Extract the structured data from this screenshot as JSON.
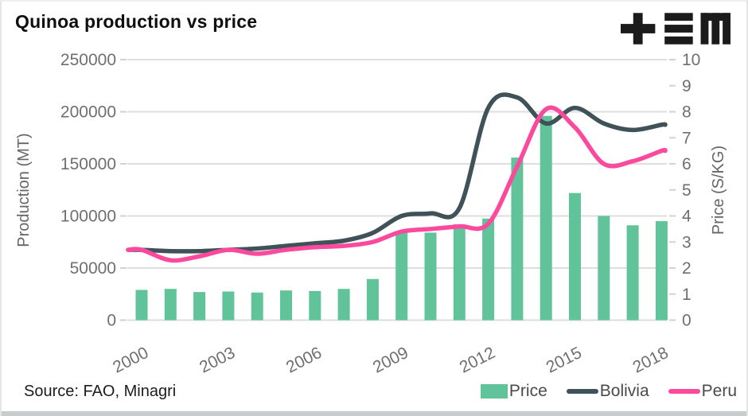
{
  "header": {
    "title": "Quinoa production vs price",
    "logo_icon": "tem-logo"
  },
  "source": {
    "text": "Source: FAO, Minagri"
  },
  "colors": {
    "bar_green": "#61c399",
    "bolivia_slate": "#3f5257",
    "peru_pink": "#fb4a9d",
    "grid": "#dedede",
    "tick": "#d2d2d2",
    "axis_text": "#6f6f6f",
    "legend_text": "#4a4a4a",
    "logo_black": "#1b1b1b",
    "bottom_band": "#c9cccd"
  },
  "chart_data": {
    "type": "bar",
    "title": "Quinoa production vs price",
    "x": [
      2000,
      2001,
      2002,
      2003,
      2004,
      2005,
      2006,
      2007,
      2008,
      2009,
      2010,
      2011,
      2012,
      2013,
      2014,
      2015,
      2016,
      2017,
      2018
    ],
    "x_axis": {
      "tick_labels": [
        "2000",
        "2003",
        "2006",
        "2009",
        "2012",
        "2015",
        "2018"
      ],
      "tick_years": [
        2000,
        2003,
        2006,
        2009,
        2012,
        2015,
        2018
      ]
    },
    "left_axis": {
      "label": "Production (MT)",
      "range": [
        0,
        250000
      ],
      "ticks": [
        0,
        50000,
        100000,
        150000,
        200000,
        250000
      ],
      "tick_labels": [
        "0",
        "50000",
        "100000",
        "150000",
        "200000",
        "250000"
      ]
    },
    "right_axis": {
      "label": "Price (S/KG)",
      "range": [
        0,
        10
      ],
      "ticks": [
        0,
        1,
        2,
        3,
        4,
        5,
        6,
        7,
        8,
        9,
        10
      ],
      "tick_labels": [
        "0",
        "1",
        "2",
        "3",
        "4",
        "5",
        "6",
        "7",
        "8",
        "9",
        "10"
      ]
    },
    "grid": "horizontal-only",
    "legend_position": "bottom-right",
    "series": [
      {
        "name": "Price",
        "type": "bar",
        "axis": "left",
        "color": "#61c399",
        "values": [
          29000,
          30000,
          27000,
          27500,
          26500,
          28500,
          28000,
          30000,
          39500,
          84000,
          84000,
          92000,
          97500,
          156000,
          196000,
          122000,
          100000,
          91000,
          95000
        ]
      },
      {
        "name": "Bolivia",
        "type": "line",
        "axis": "right",
        "color": "#3f5257",
        "values": [
          2.7,
          2.65,
          2.65,
          2.7,
          2.75,
          2.85,
          2.95,
          3.05,
          3.35,
          4.0,
          4.1,
          4.3,
          8.15,
          8.55,
          7.55,
          8.15,
          7.55,
          7.3,
          7.5
        ]
      },
      {
        "name": "Peru",
        "type": "line",
        "axis": "right",
        "color": "#fb4a9d",
        "values": [
          2.7,
          2.3,
          2.45,
          2.7,
          2.55,
          2.7,
          2.8,
          2.85,
          3.0,
          3.4,
          3.5,
          3.6,
          3.7,
          5.9,
          8.1,
          7.4,
          6.0,
          6.1,
          6.5
        ]
      }
    ]
  }
}
